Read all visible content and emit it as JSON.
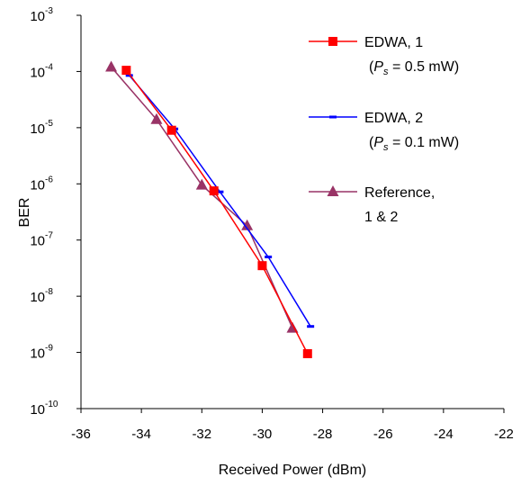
{
  "chart_data": {
    "type": "line",
    "xlabel": "Received Power (dBm)",
    "ylabel": "BER",
    "xlim": [
      -36,
      -22
    ],
    "x_ticks": [
      -36,
      -34,
      -32,
      -30,
      -28,
      -26,
      -24,
      -22
    ],
    "ylim_log10": [
      -10,
      -3
    ],
    "y_scale": "log",
    "y_tick_base": "10",
    "y_tick_exponents": [
      "-3",
      "-4",
      "-5",
      "-6",
      "-7",
      "-8",
      "-9",
      "-10"
    ],
    "grid": false,
    "legend_position": "top-right",
    "series": [
      {
        "name": "EDWA, 1",
        "name_line2": "= 0.5 mW)",
        "color": "#ff0000",
        "marker": "square",
        "x": [
          -34.5,
          -33.0,
          -31.6,
          -30.0,
          -28.5
        ],
        "y": [
          0.000105,
          9e-06,
          7.5e-07,
          3.5e-08,
          9.5e-10
        ]
      },
      {
        "name": "EDWA, 2",
        "name_line2": "= 0.1 mW)",
        "color": "#0000ff",
        "marker": "dash",
        "x": [
          -34.4,
          -32.9,
          -31.4,
          -29.8,
          -28.4
        ],
        "y": [
          8.5e-05,
          9.5e-06,
          7.2e-07,
          5e-08,
          2.9e-09
        ]
      },
      {
        "name": "Reference,",
        "name_line2": "1 & 2",
        "color": "#993366",
        "marker": "triangle",
        "x": [
          -35.0,
          -33.5,
          -32.0,
          -30.5,
          -29.0
        ],
        "y": [
          0.00012,
          1.4e-05,
          9.5e-07,
          1.8e-07,
          2.7e-09
        ]
      }
    ],
    "legend_paren_open": "(",
    "legend_sym_p": "P",
    "legend_sym_sub": "s"
  }
}
